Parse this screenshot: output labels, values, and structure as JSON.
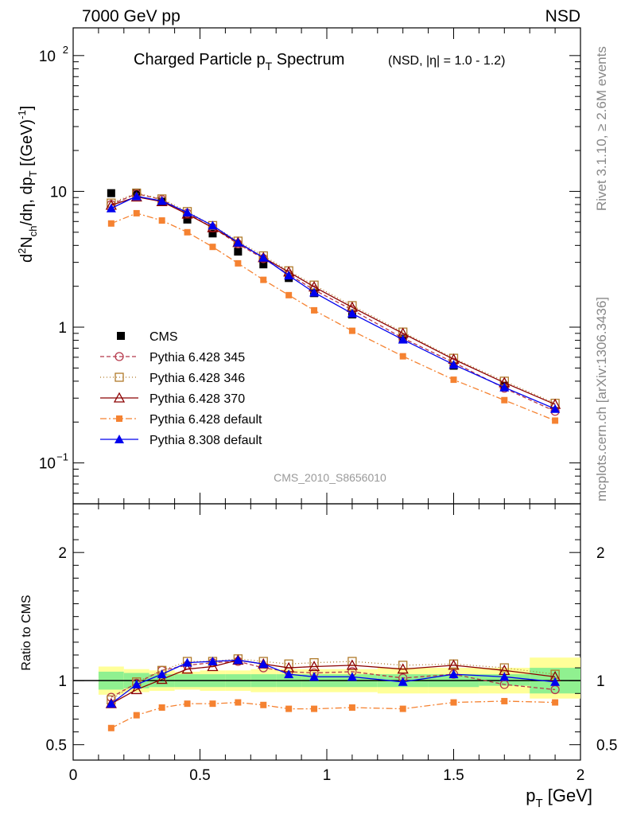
{
  "header": {
    "left": "7000 GeV pp",
    "right": "NSD"
  },
  "title": {
    "main": "Charged Particle p",
    "main_sub": "T",
    "main_after": " Spectrum",
    "small": "(NSD, |η| = 1.0 - 1.2)"
  },
  "analysis_id": "CMS_2010_S8656010",
  "side_text": {
    "rivet": "Rivet 3.1.10, ≥ 2.6M events",
    "mcplots": "mcplots.cern.ch [arXiv:1306.3436]"
  },
  "ylabel_main": "d²N_ch/dη, dp_T [(GeV)⁻¹]",
  "ylabel_ratio": "Ratio to CMS",
  "xlabel": "p_T [GeV]",
  "colors": {
    "cms": "#000000",
    "p345": "#b5384a",
    "p346": "#b07a2a",
    "p370": "#8b0000",
    "p6def": "#f58231",
    "p8def": "#0000ee",
    "band_inner": "#90f090",
    "band_outer": "#ffff99"
  },
  "chart_data": [
    {
      "type": "line",
      "yscale": "log",
      "xlim": [
        0,
        2.0
      ],
      "ylim": [
        0.05,
        160
      ],
      "x_ticks": [
        0,
        0.5,
        1,
        1.5,
        2
      ],
      "y_ticks": [
        "10^-1",
        "1",
        "10",
        "10^2"
      ],
      "x": [
        0.15,
        0.25,
        0.35,
        0.45,
        0.55,
        0.65,
        0.75,
        0.85,
        0.95,
        1.1,
        1.3,
        1.5,
        1.7,
        1.9
      ],
      "legend_position": "lower-left",
      "series": [
        {
          "name": "CMS",
          "marker": "square",
          "values": [
            9.7,
            9.8,
            8.4,
            6.2,
            4.9,
            3.6,
            2.9,
            2.3,
            1.78,
            1.24,
            0.82,
            0.52,
            0.37,
            null
          ]
        },
        {
          "name": "Pythia 6.428 345",
          "marker": "circle",
          "dash": "5,3",
          "values": [
            8.0,
            9.6,
            8.7,
            6.9,
            5.4,
            4.1,
            3.2,
            2.45,
            1.88,
            1.34,
            0.83,
            0.55,
            0.355,
            0.24
          ]
        },
        {
          "name": "Pythia 6.428 346",
          "marker": "open-square",
          "dash": "1,3",
          "values": [
            8.2,
            9.7,
            8.8,
            7.1,
            5.6,
            4.3,
            3.35,
            2.6,
            2.04,
            1.44,
            0.92,
            0.59,
            0.4,
            0.275
          ]
        },
        {
          "name": "Pythia 6.428 370",
          "marker": "triangle",
          "dash": "",
          "values": [
            7.9,
            9.1,
            8.4,
            6.8,
            5.4,
            4.2,
            3.25,
            2.55,
            1.98,
            1.4,
            0.9,
            0.58,
            0.39,
            0.27
          ]
        },
        {
          "name": "Pythia 6.428 default",
          "marker": "filled-square",
          "dash": "8,3,2,3",
          "values": [
            5.8,
            6.9,
            6.1,
            5.0,
            3.9,
            2.95,
            2.23,
            1.72,
            1.33,
            0.94,
            0.61,
            0.41,
            0.29,
            0.205
          ]
        },
        {
          "name": "Pythia 8.308 default",
          "marker": "filled-triangle",
          "dash": "",
          "values": [
            7.5,
            9.2,
            8.5,
            7.0,
            5.6,
            4.2,
            3.25,
            2.4,
            1.8,
            1.26,
            0.81,
            0.53,
            0.36,
            0.25
          ]
        }
      ]
    },
    {
      "type": "line",
      "ylabel": "Ratio to CMS",
      "xlim": [
        0,
        2.0
      ],
      "ylim": [
        0.38,
        2.38
      ],
      "y_ticks": [
        0.5,
        1,
        2
      ],
      "x": [
        0.15,
        0.25,
        0.35,
        0.45,
        0.55,
        0.65,
        0.75,
        0.85,
        0.95,
        1.1,
        1.3,
        1.5,
        1.7,
        1.9
      ],
      "band_edges": [
        0.1,
        0.2,
        0.3,
        0.4,
        0.5,
        0.6,
        0.7,
        0.8,
        0.9,
        1.0,
        1.2,
        1.4,
        1.6,
        1.8,
        2.0
      ],
      "band_stat": [
        0.93,
        0.94,
        0.95,
        0.95,
        0.95,
        0.95,
        0.95,
        0.95,
        0.95,
        0.95,
        0.95,
        0.95,
        0.96,
        0.9
      ],
      "band_stat_up": [
        1.07,
        1.06,
        1.05,
        1.05,
        1.05,
        1.05,
        1.05,
        1.05,
        1.05,
        1.05,
        1.05,
        1.05,
        1.05,
        1.1
      ],
      "band_sys": [
        0.89,
        0.91,
        0.92,
        0.93,
        0.92,
        0.92,
        0.91,
        0.91,
        0.91,
        0.91,
        0.9,
        0.9,
        0.9,
        0.86
      ],
      "band_sys_up": [
        1.11,
        1.09,
        1.08,
        1.07,
        1.08,
        1.08,
        1.09,
        1.09,
        1.09,
        1.09,
        1.1,
        1.1,
        1.1,
        1.18
      ],
      "series": [
        {
          "name": "Pythia 6.428 345",
          "marker": "circle",
          "dash": "5,3",
          "values": [
            0.87,
            0.98,
            1.08,
            1.12,
            1.14,
            1.15,
            1.1,
            1.07,
            1.06,
            1.07,
            1.02,
            1.05,
            0.97,
            0.93
          ]
        },
        {
          "name": "Pythia 6.428 346",
          "marker": "open-square",
          "dash": "1,3",
          "values": [
            0.85,
            0.99,
            1.08,
            1.15,
            1.15,
            1.17,
            1.15,
            1.13,
            1.14,
            1.15,
            1.12,
            1.13,
            1.1,
            1.05
          ]
        },
        {
          "name": "Pythia 6.428 370",
          "marker": "triangle",
          "dash": "",
          "values": [
            0.82,
            0.93,
            1.01,
            1.09,
            1.11,
            1.16,
            1.13,
            1.1,
            1.11,
            1.12,
            1.09,
            1.12,
            1.08,
            1.03
          ]
        },
        {
          "name": "Pythia 6.428 default",
          "marker": "filled-square",
          "dash": "8,3,2,3",
          "values": [
            0.63,
            0.73,
            0.79,
            0.82,
            0.82,
            0.83,
            0.81,
            0.78,
            0.78,
            0.79,
            0.78,
            0.83,
            0.84,
            0.83
          ]
        },
        {
          "name": "Pythia 8.308 default",
          "marker": "filled-triangle",
          "dash": "",
          "values": [
            0.82,
            0.97,
            1.05,
            1.14,
            1.15,
            1.16,
            1.13,
            1.05,
            1.03,
            1.03,
            0.99,
            1.05,
            1.03,
            0.99
          ]
        }
      ]
    }
  ]
}
